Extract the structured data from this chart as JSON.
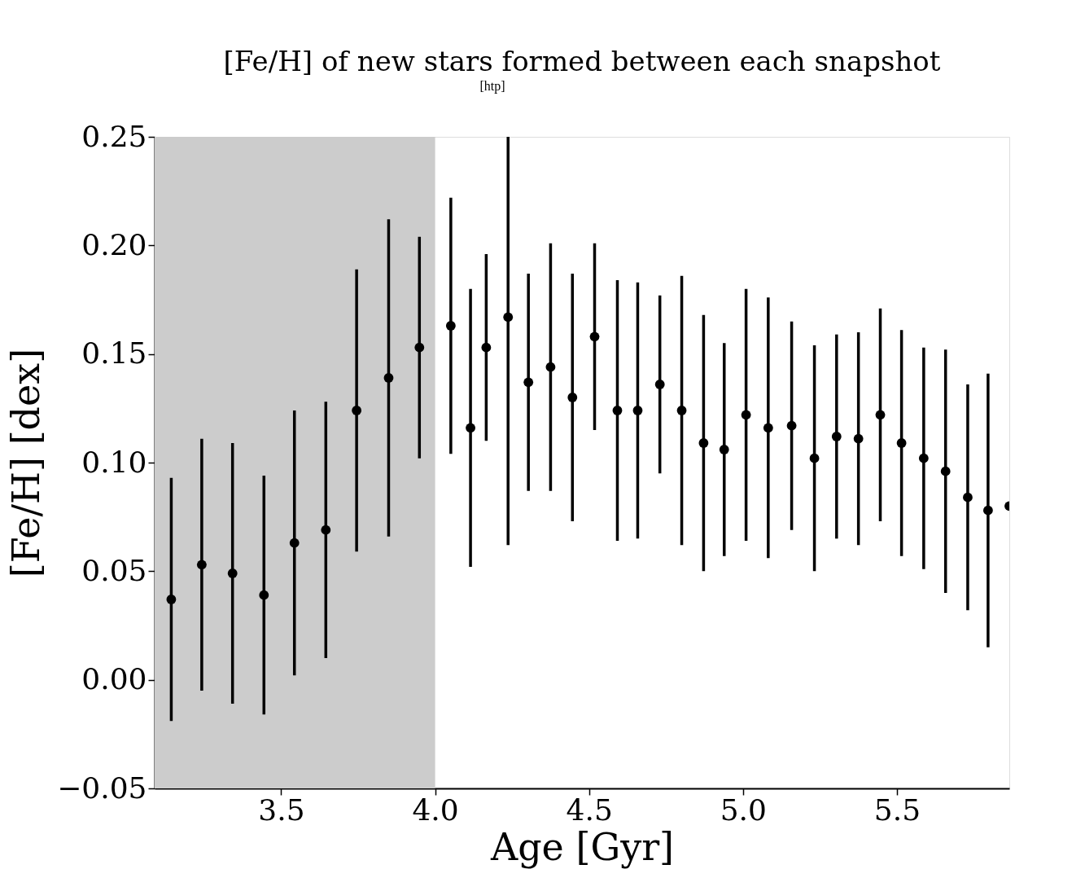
{
  "chart_data": {
    "type": "scatter",
    "title": "[Fe/H] of new stars formed between each snapshot",
    "xlabel": "Age [Gyr]",
    "ylabel": "[Fe/H] [dex]",
    "annotations": [
      "[htp]"
    ],
    "x": [
      3.143,
      3.242,
      3.342,
      3.444,
      3.543,
      3.645,
      3.745,
      3.849,
      3.949,
      4.051,
      4.115,
      4.166,
      4.237,
      4.303,
      4.375,
      4.446,
      4.518,
      4.592,
      4.658,
      4.73,
      4.801,
      4.872,
      4.939,
      5.01,
      5.082,
      5.158,
      5.232,
      5.304,
      5.375,
      5.446,
      5.515,
      5.587,
      5.658,
      5.73,
      5.796,
      5.865
    ],
    "series": [
      {
        "color": "#000000",
        "values": [
          0.037,
          0.053,
          0.049,
          0.039,
          0.063,
          0.069,
          0.124,
          0.139,
          0.153,
          0.163,
          0.116,
          0.153,
          0.167,
          0.137,
          0.144,
          0.13,
          0.158,
          0.124,
          0.124,
          0.136,
          0.124,
          0.109,
          0.106,
          0.122,
          0.116,
          0.117,
          0.102,
          0.112,
          0.111,
          0.122,
          0.109,
          0.102,
          0.096,
          0.084,
          0.078,
          0.08
        ],
        "errors": [
          0.056,
          0.058,
          0.06,
          0.055,
          0.061,
          0.059,
          0.065,
          0.073,
          0.051,
          0.059,
          0.064,
          0.043,
          [
            0.062,
            0.25
          ],
          0.05,
          0.057,
          0.057,
          0.043,
          0.06,
          0.059,
          0.041,
          0.062,
          0.059,
          0.049,
          0.058,
          0.06,
          0.048,
          0.052,
          0.047,
          0.049,
          0.049,
          0.052,
          0.051,
          0.056,
          0.052,
          0.063,
          null
        ]
      }
    ],
    "marker": "circle",
    "xlim": [
      3.089,
      5.865
    ],
    "ylim": [
      -0.05,
      0.25
    ],
    "xticks": [
      {
        "value": 3.5,
        "label": "3.5"
      },
      {
        "value": 4.0,
        "label": "4.0"
      },
      {
        "value": 4.5,
        "label": "4.5"
      },
      {
        "value": 5.0,
        "label": "5.0"
      },
      {
        "value": 5.5,
        "label": "5.5"
      }
    ],
    "yticks": [
      {
        "value": -0.05,
        "label": "−0.05"
      },
      {
        "value": 0.0,
        "label": "0.00"
      },
      {
        "value": 0.05,
        "label": "0.05"
      },
      {
        "value": 0.1,
        "label": "0.10"
      },
      {
        "value": 0.15,
        "label": "0.15"
      },
      {
        "value": 0.2,
        "label": "0.20"
      },
      {
        "value": 0.25,
        "label": "0.25"
      }
    ],
    "bands": [
      {
        "axis": "x",
        "from": 3.089,
        "to": 4.0,
        "color": "#cccccc"
      }
    ],
    "grid": false
  }
}
